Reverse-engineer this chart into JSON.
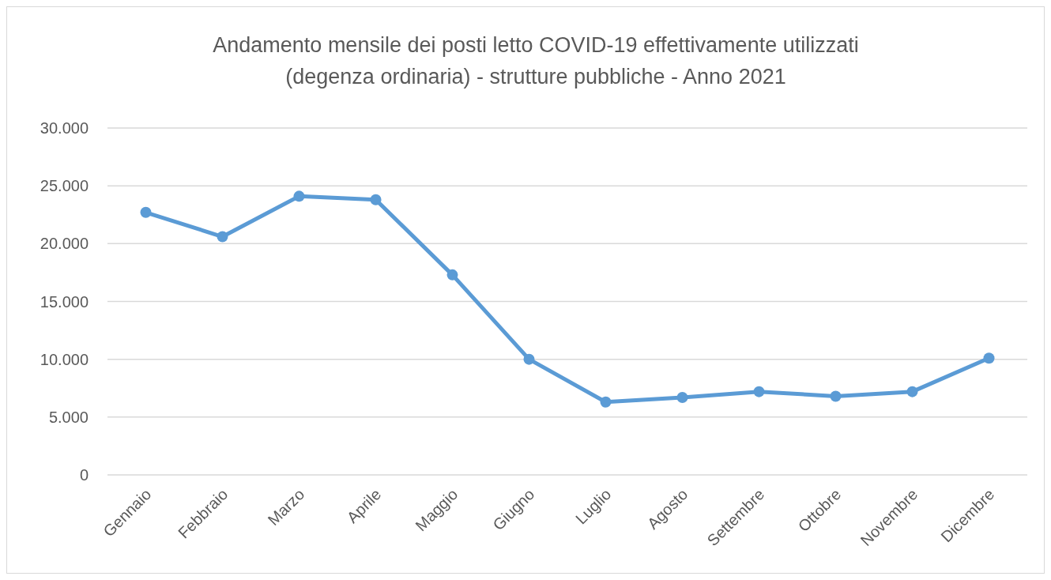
{
  "chart_data": {
    "type": "line",
    "title": "Andamento mensile dei posti letto COVID-19 effettivamente utilizzati\n(degenza ordinaria) - strutture pubbliche - Anno 2021",
    "categories": [
      "Gennaio",
      "Febbraio",
      "Marzo",
      "Aprile",
      "Maggio",
      "Giugno",
      "Luglio",
      "Agosto",
      "Settembre",
      "Ottobre",
      "Novembre",
      "Dicembre"
    ],
    "series": [
      {
        "color": "#5b9bd5",
        "values": [
          22700,
          20600,
          24100,
          23800,
          17300,
          10000,
          6300,
          6700,
          7200,
          6800,
          7200,
          10100
        ]
      }
    ],
    "ylim": [
      0,
      30000
    ],
    "yticks": [
      0,
      {
        "value": 5000,
        "label": "5.000"
      },
      {
        "value": 10000,
        "label": "10.000"
      },
      {
        "value": 15000,
        "label": "15.000"
      },
      {
        "value": 20000,
        "label": "20.000"
      },
      {
        "value": 25000,
        "label": "25.000"
      },
      {
        "value": 30000,
        "label": "30.000"
      }
    ],
    "grid": "y",
    "marker": "circle",
    "line_style": "solid"
  }
}
